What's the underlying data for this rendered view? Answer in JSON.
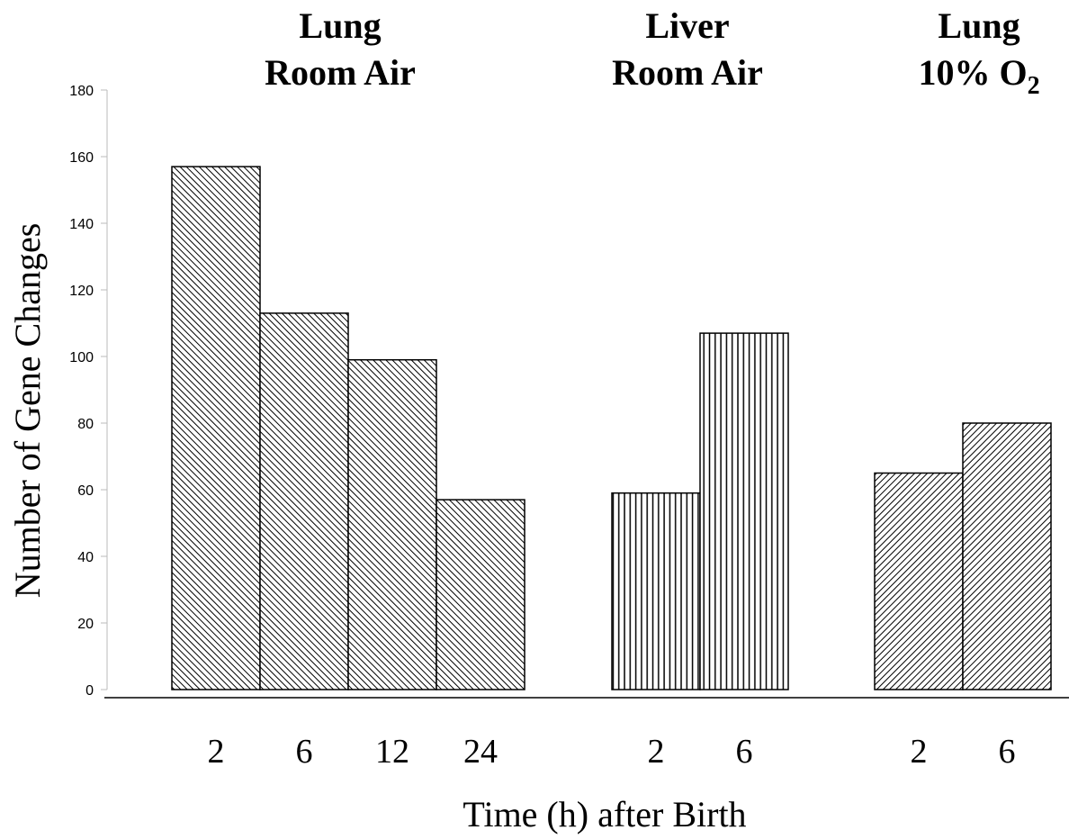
{
  "chart_data": {
    "type": "bar",
    "title": "",
    "xlabel": "Time (h) after Birth",
    "ylabel": "Number of Gene Changes",
    "ylim": [
      0,
      180
    ],
    "yticks": [
      "0",
      "20",
      "40",
      "60",
      "80",
      "100",
      "120",
      "140",
      "160",
      "180"
    ],
    "grid": false,
    "legend": "none",
    "groups": [
      {
        "title_line1": "Lung",
        "title_line2": "Room Air",
        "categories": [
          "2",
          "6",
          "12",
          "24"
        ],
        "values": [
          157,
          113,
          99,
          57
        ],
        "pattern": "diagonal-back"
      },
      {
        "title_line1": "Liver",
        "title_line2": "Room Air",
        "categories": [
          "2",
          "6"
        ],
        "values": [
          59,
          107
        ],
        "pattern": "vertical"
      },
      {
        "title_line1": "Lung",
        "title_line2_main": "10% O",
        "title_line2_sub": "2",
        "categories": [
          "2",
          "6"
        ],
        "values": [
          65,
          80
        ],
        "pattern": "diagonal-forward"
      }
    ],
    "colors": {
      "bar_outline": "#000000",
      "hatch": "#000000",
      "background": "#ffffff"
    }
  }
}
